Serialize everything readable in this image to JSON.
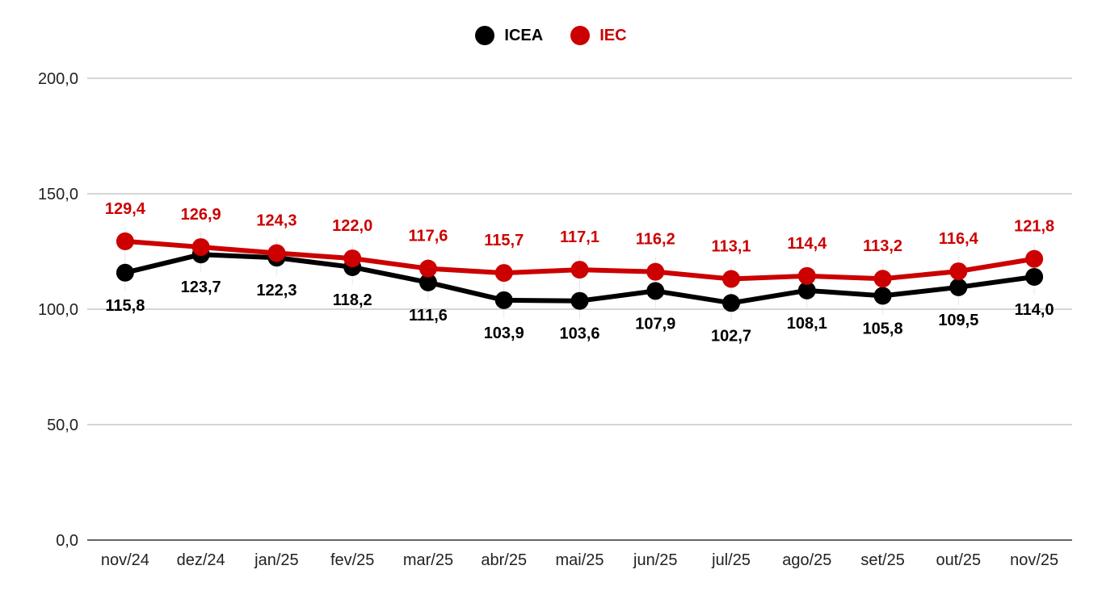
{
  "chart_data": {
    "type": "line",
    "categories": [
      "nov/24",
      "dez/24",
      "jan/25",
      "fev/25",
      "mar/25",
      "abr/25",
      "mai/25",
      "jun/25",
      "jul/25",
      "ago/25",
      "set/25",
      "out/25",
      "nov/25"
    ],
    "series": [
      {
        "name": "ICEA",
        "color": "#000000",
        "values": [
          115.8,
          123.7,
          122.3,
          118.2,
          111.6,
          103.9,
          103.6,
          107.9,
          102.7,
          108.1,
          105.8,
          109.5,
          114.0
        ],
        "labels": [
          "115,8",
          "123,7",
          "122,3",
          "118,2",
          "111,6",
          "103,9",
          "103,6",
          "107,9",
          "102,7",
          "108,1",
          "105,8",
          "109,5",
          "114,0"
        ],
        "label_position": "below"
      },
      {
        "name": "IEC",
        "color": "#cc0000",
        "values": [
          129.4,
          126.9,
          124.3,
          122.0,
          117.6,
          115.7,
          117.1,
          116.2,
          113.1,
          114.4,
          113.2,
          116.4,
          121.8
        ],
        "labels": [
          "129,4",
          "126,9",
          "124,3",
          "122,0",
          "117,6",
          "115,7",
          "117,1",
          "116,2",
          "113,1",
          "114,4",
          "113,2",
          "116,4",
          "121,8"
        ],
        "label_position": "above"
      }
    ],
    "y_ticks": [
      0,
      50,
      100,
      150,
      200
    ],
    "y_tick_labels": [
      "0,0",
      "50,0",
      "100,0",
      "150,0",
      "200,0"
    ],
    "ylim": [
      0,
      200
    ],
    "grid": true,
    "legend_position": "top-center",
    "title": "",
    "xlabel": "",
    "ylabel": ""
  }
}
